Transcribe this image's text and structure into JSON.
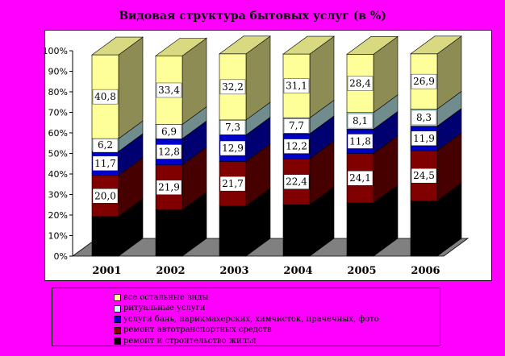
{
  "chart_data": {
    "type": "bar",
    "stacked": true,
    "percent": true,
    "three_d": true,
    "title": "Видовая структура бытовых услуг (в %)",
    "categories": [
      "2001",
      "2002",
      "2003",
      "2004",
      "2005",
      "2006"
    ],
    "ylim": [
      0,
      100
    ],
    "y_ticks": [
      "0%",
      "10%",
      "20%",
      "30%",
      "40%",
      "50%",
      "60%",
      "70%",
      "80%",
      "90%",
      "100%"
    ],
    "grid": false,
    "legend_position": "bottom",
    "series": [
      {
        "name": "ремонт и строительство жилья",
        "color": "#000000",
        "values": [
          19.3,
          22.5,
          24.4,
          25.0,
          25.9,
          26.9
        ]
      },
      {
        "name": "ремонт автотранспортных средств",
        "color": "#800000",
        "values": [
          20.0,
          21.9,
          21.7,
          22.4,
          24.1,
          24.5
        ]
      },
      {
        "name": "услуги бань, парикмахерских, химчисток, прачечных, фото",
        "color": "#0000CC",
        "values": [
          11.7,
          12.8,
          12.9,
          12.2,
          11.8,
          11.9
        ]
      },
      {
        "name": "ритуальные услуги",
        "color": "#CCFFFF",
        "values": [
          6.2,
          6.9,
          7.3,
          7.7,
          8.1,
          8.3
        ]
      },
      {
        "name": "все остальные виды",
        "color": "#FFFF99",
        "values": [
          40.8,
          33.4,
          32.2,
          31.1,
          28.4,
          26.9
        ]
      }
    ],
    "data_labels": [
      {
        "series": 1,
        "labels": [
          "20,0",
          "21,9",
          "21,7",
          "22,4",
          "24,1",
          "24,5"
        ]
      },
      {
        "series": 2,
        "labels": [
          "11,7",
          "12,8",
          "12,9",
          "12,2",
          "11,8",
          "11,9"
        ]
      },
      {
        "series": 3,
        "labels": [
          "6,2",
          "6,9",
          "7,3",
          "7,7",
          "8,1",
          "8,3"
        ]
      },
      {
        "series": 4,
        "labels": [
          "40,8",
          "33,4",
          "32,2",
          "31,1",
          "28,4",
          "26,9"
        ]
      }
    ]
  },
  "legend": {
    "items": [
      {
        "label": "все остальные виды",
        "color": "#FFFF99"
      },
      {
        "label": "ритуальные услуги",
        "color": "#CCFFFF"
      },
      {
        "label": "услуги бань, парикмахерских, химчисток, прачечных, фото",
        "color": "#0000CC"
      },
      {
        "label": "ремонт автотранспортных средств",
        "color": "#800000"
      },
      {
        "label": "ремонт и строительство жилья",
        "color": "#000000"
      }
    ]
  }
}
